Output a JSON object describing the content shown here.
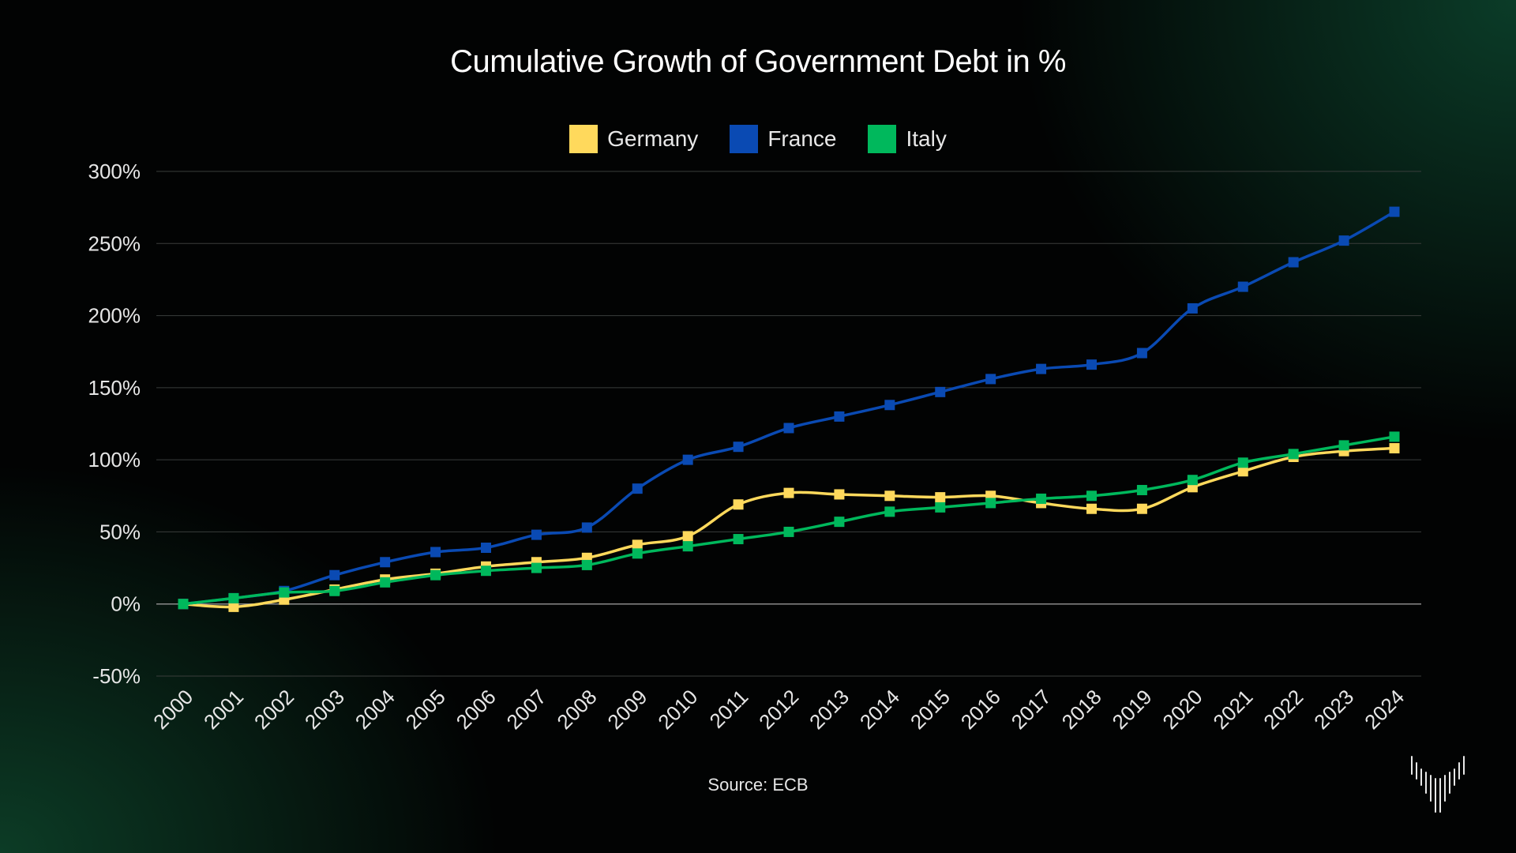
{
  "chart_data": {
    "type": "line",
    "title": "Cumulative Growth of Government Debt in %",
    "x": [
      2000,
      2001,
      2002,
      2003,
      2004,
      2005,
      2006,
      2007,
      2008,
      2009,
      2010,
      2011,
      2012,
      2013,
      2014,
      2015,
      2016,
      2017,
      2018,
      2019,
      2020,
      2021,
      2022,
      2023,
      2024
    ],
    "x_tick_labels": [
      "2000",
      "2001",
      "2002",
      "2003",
      "2004",
      "2005",
      "2006",
      "2007",
      "2008",
      "2009",
      "2010",
      "2011",
      "2012",
      "2013",
      "2014",
      "2015",
      "2016",
      "2017",
      "2018",
      "2019",
      "2020",
      "2021",
      "2022",
      "2023",
      "2024"
    ],
    "ylim": [
      -50,
      300
    ],
    "y_ticks": [
      -50,
      0,
      50,
      100,
      150,
      200,
      250,
      300
    ],
    "y_tick_labels": [
      "-50%",
      "0%",
      "50%",
      "100%",
      "150%",
      "200%",
      "250%",
      "300%"
    ],
    "grid": true,
    "legend_position": "top-center",
    "series": [
      {
        "name": "Germany",
        "color": "#ffd95c",
        "values": [
          0,
          -2,
          3,
          10,
          17,
          21,
          26,
          29,
          32,
          41,
          47,
          69,
          77,
          76,
          75,
          74,
          75,
          70,
          66,
          66,
          81,
          92,
          102,
          106,
          108
        ]
      },
      {
        "name": "France",
        "color": "#0a4ab3",
        "values": [
          0,
          4,
          9,
          20,
          29,
          36,
          39,
          48,
          53,
          80,
          100,
          109,
          122,
          130,
          138,
          147,
          156,
          163,
          166,
          174,
          205,
          220,
          237,
          252,
          272
        ]
      },
      {
        "name": "Italy",
        "color": "#00b85c",
        "values": [
          0,
          4,
          8,
          9,
          15,
          20,
          23,
          25,
          27,
          35,
          40,
          45,
          50,
          57,
          64,
          67,
          70,
          73,
          75,
          79,
          86,
          98,
          104,
          110,
          116
        ]
      }
    ]
  },
  "source_note": "Source: ECB",
  "brand_logo_icon": "barcode-fan-logo-icon"
}
